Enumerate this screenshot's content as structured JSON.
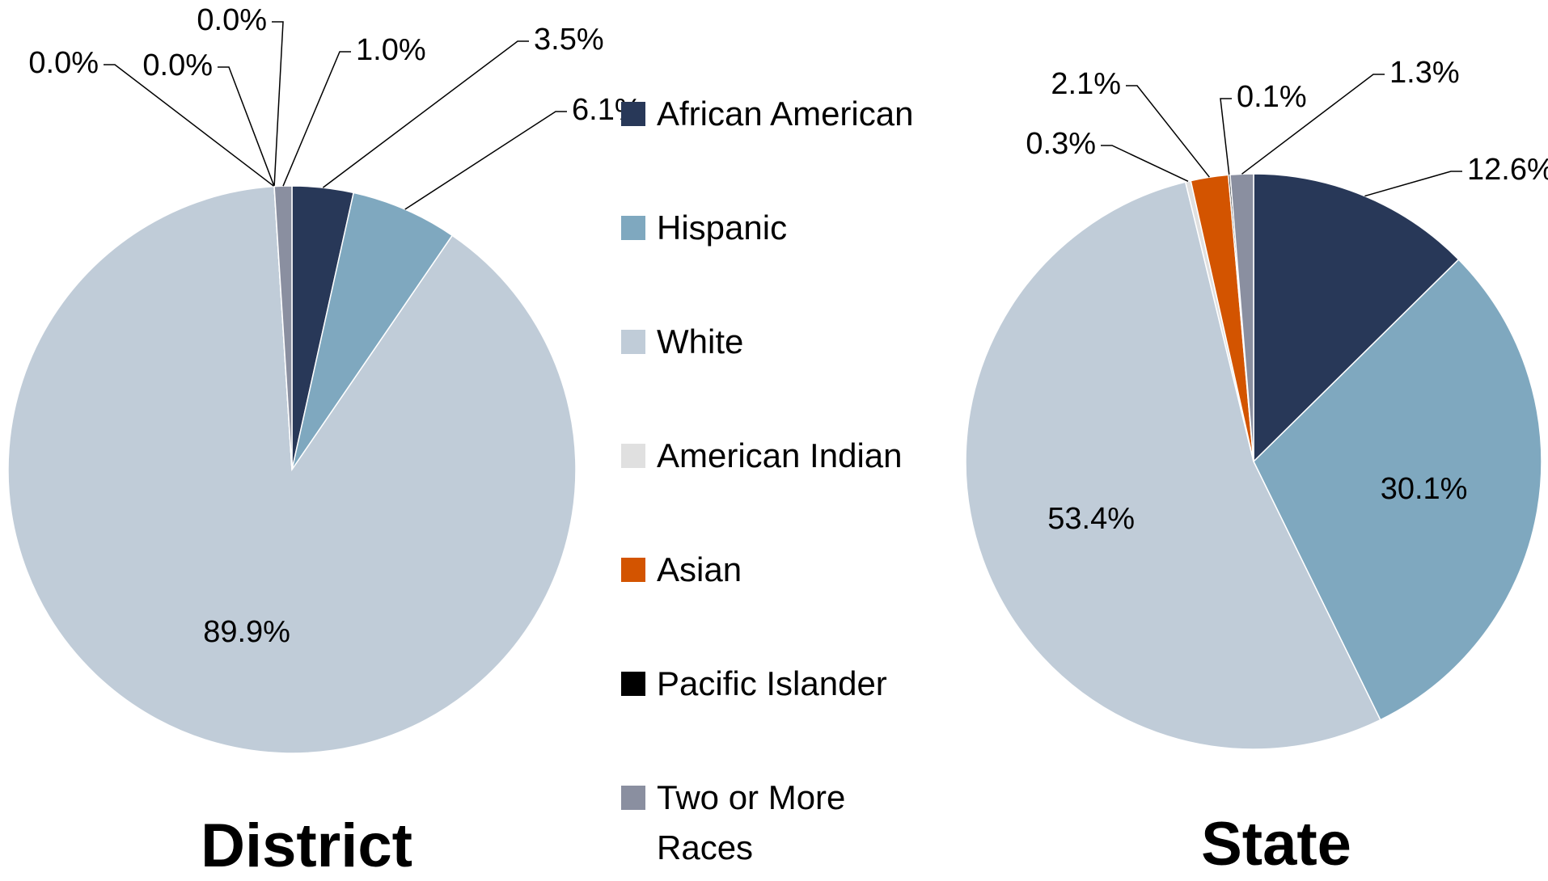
{
  "chart_data": [
    {
      "type": "pie",
      "title": "District",
      "categories": [
        "African American",
        "Hispanic",
        "White",
        "American Indian",
        "Asian",
        "Pacific Islander",
        "Two or More Races"
      ],
      "values": [
        3.5,
        6.1,
        89.9,
        0.0,
        0.0,
        0.0,
        1.0
      ],
      "value_labels": [
        "3.5%",
        "6.1%",
        "89.9%",
        "0.0%",
        "0.0%",
        "0.0%",
        "1.0%"
      ],
      "colors": [
        "#283858",
        "#7fa8bf",
        "#c0ccd8",
        "#e0e0e0",
        "#d35400",
        "#000000",
        "#8a8fa0"
      ]
    },
    {
      "type": "pie",
      "title": "State",
      "values": [
        12.6,
        30.1,
        53.4,
        0.3,
        2.1,
        0.1,
        1.3
      ],
      "value_labels": [
        "12.6%",
        "30.1%",
        "53.4%",
        "0.3%",
        "2.1%",
        "0.1%",
        "1.3%"
      ],
      "colors": [
        "#283858",
        "#7fa8bf",
        "#c0ccd8",
        "#e0e0e0",
        "#d35400",
        "#000000",
        "#8a8fa0"
      ]
    }
  ]
}
